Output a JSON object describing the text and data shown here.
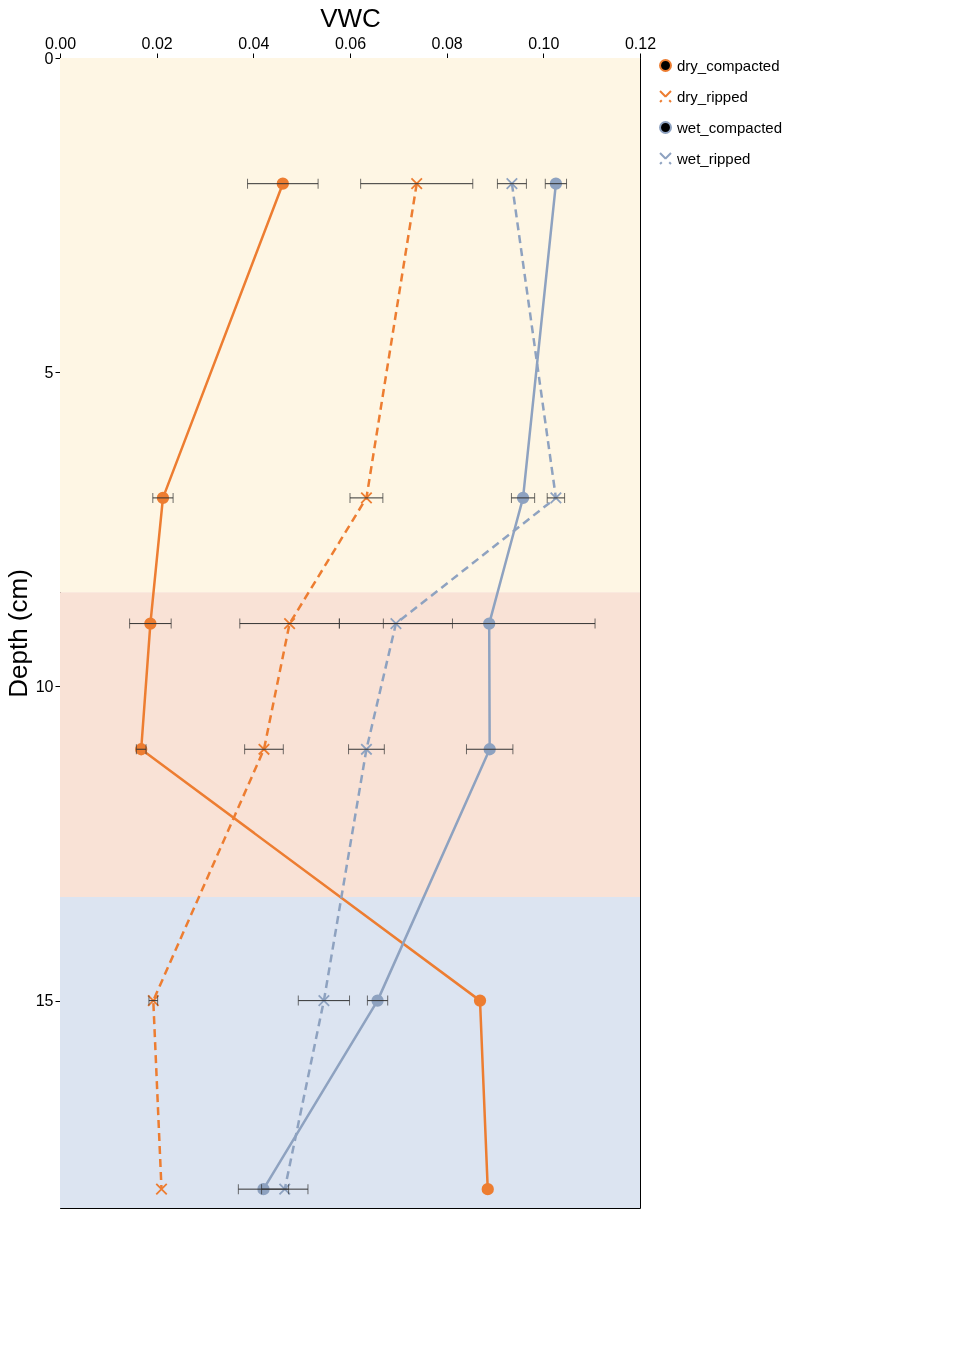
{
  "chart_data": {
    "type": "line",
    "xlabel": "VWC",
    "ylabel": "Depth (cm)",
    "xlim": [
      0,
      0.12
    ],
    "xticks": [
      {
        "value": 0,
        "label": "0.00"
      },
      {
        "value": 0.02,
        "label": "0.02"
      },
      {
        "value": 0.04,
        "label": "0.04"
      },
      {
        "value": 0.06,
        "label": "0.06"
      },
      {
        "value": 0.08,
        "label": "0.08"
      },
      {
        "value": 0.1,
        "label": "0.10"
      },
      {
        "value": 0.12,
        "label": "0.12"
      }
    ],
    "ylim": [
      18.3,
      0
    ],
    "yticks": [
      0,
      5,
      10,
      15
    ],
    "grid": false,
    "legend": "right",
    "bands": [
      {
        "axis": "y",
        "from": 0,
        "to": 8.5,
        "color": "#fef6e4"
      },
      {
        "axis": "y",
        "from": 8.5,
        "to": 13.35,
        "color": "#f9e2d6"
      },
      {
        "axis": "y",
        "from": 13.35,
        "to": 18.3,
        "color": "#dce4f1"
      }
    ],
    "series": [
      {
        "name": "dry_compacted",
        "color": "#ed7d31",
        "marker": "circle",
        "line_style": "solid",
        "x": [
          0.0461,
          0.0213,
          0.0187,
          0.0168,
          0.0869,
          0.0885
        ],
        "values": [
          2,
          7,
          9,
          11,
          15,
          18
        ],
        "xerrors": [
          0.0073,
          0.0021,
          0.0043,
          0.001,
          null,
          null
        ]
      },
      {
        "name": "dry_ripped",
        "color": "#ed7d31",
        "marker": "cross",
        "line_style": "dashed",
        "x": [
          0.0738,
          0.0634,
          0.0475,
          0.0422,
          0.0193,
          0.021
        ],
        "values": [
          2,
          7,
          9,
          11,
          15,
          18
        ],
        "xerrors": [
          0.0116,
          0.0034,
          0.0103,
          0.004,
          0.0009,
          null
        ]
      },
      {
        "name": "wet_compacted",
        "color": "#8ea2c0",
        "marker": "circle",
        "line_style": "solid",
        "x": [
          0.1026,
          0.0958,
          0.0888,
          0.0889,
          0.0657,
          0.0421
        ],
        "values": [
          2,
          7,
          9,
          11,
          15,
          18
        ],
        "xerrors": [
          0.0022,
          0.0024,
          0.0219,
          0.0048,
          0.0021,
          0.0052
        ]
      },
      {
        "name": "wet_ripped",
        "color": "#8ea2c0",
        "marker": "cross",
        "line_style": "dashed",
        "x": [
          0.0935,
          0.1026,
          0.0695,
          0.0634,
          0.0546,
          0.0465
        ],
        "values": [
          2,
          7,
          9,
          11,
          15,
          18
        ],
        "xerrors": [
          0.003,
          0.0018,
          0.0117,
          0.0037,
          0.0053,
          0.0048
        ]
      }
    ]
  }
}
